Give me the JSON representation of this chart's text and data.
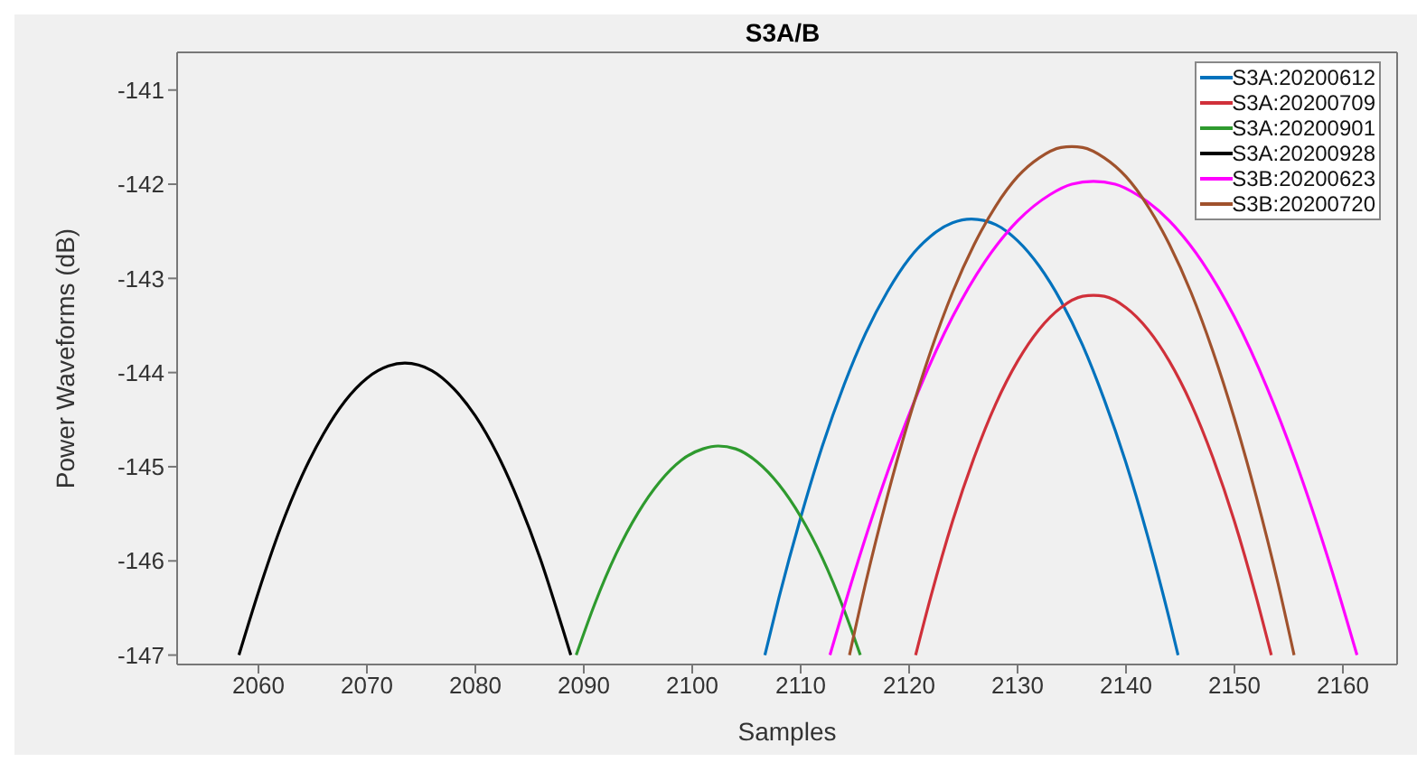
{
  "chart_data": {
    "type": "line",
    "title": "S3A/B",
    "xlabel": "Samples",
    "ylabel": "Power Waveforms (dB)",
    "xlim": [
      2052.5,
      2165
    ],
    "xticks": [
      2060,
      2070,
      2080,
      2090,
      2100,
      2110,
      2120,
      2130,
      2140,
      2150,
      2160
    ],
    "ylim": [
      -147.1,
      -140.6
    ],
    "yticks": [
      -147,
      -146,
      -145,
      -144,
      -143,
      -142,
      -141
    ],
    "grid": false,
    "legend": "top right",
    "marker": "none",
    "line_style": "solid",
    "series": [
      {
        "name": "S3A:20200612",
        "color": "#0072bd",
        "x": [
          2106.7,
          2108,
          2110,
          2112,
          2114,
          2116,
          2118,
          2120,
          2122,
          2124,
          2125.75,
          2128,
          2130,
          2132,
          2134,
          2136,
          2138,
          2140,
          2142,
          2144,
          2144.8
        ],
        "values": [
          -147.0,
          -146.39,
          -145.54,
          -144.78,
          -144.13,
          -143.58,
          -143.14,
          -142.79,
          -142.55,
          -142.41,
          -142.37,
          -142.43,
          -142.6,
          -142.87,
          -143.24,
          -143.71,
          -144.29,
          -144.96,
          -145.74,
          -146.62,
          -147.0
        ]
      },
      {
        "name": "S3A:20200709",
        "color": "#d0303a",
        "x": [
          2120.6,
          2122,
          2124,
          2126,
          2128,
          2130,
          2132,
          2134,
          2136,
          2137,
          2138,
          2140,
          2142,
          2144,
          2146,
          2148,
          2150,
          2152,
          2153.4
        ],
        "values": [
          -147.0,
          -146.38,
          -145.58,
          -144.9,
          -144.33,
          -143.88,
          -143.54,
          -143.31,
          -143.19,
          -143.18,
          -143.19,
          -143.31,
          -143.54,
          -143.88,
          -144.33,
          -144.9,
          -145.58,
          -146.38,
          -147.0
        ]
      },
      {
        "name": "S3A:20200901",
        "color": "#2e9a2e",
        "x": [
          2089.3,
          2091,
          2093,
          2095,
          2097,
          2099,
          2101,
          2102.4,
          2104,
          2106,
          2108,
          2110,
          2112,
          2114,
          2115.5
        ],
        "values": [
          -147.0,
          -146.46,
          -145.92,
          -145.49,
          -145.16,
          -144.93,
          -144.81,
          -144.78,
          -144.81,
          -144.95,
          -145.19,
          -145.53,
          -145.97,
          -146.52,
          -147.0
        ]
      },
      {
        "name": "S3A:20200928",
        "color": "#000000",
        "x": [
          2058.2,
          2060,
          2062,
          2064,
          2066,
          2068,
          2070,
          2072,
          2073.5,
          2076,
          2078,
          2080,
          2082,
          2084,
          2086,
          2088,
          2088.8
        ],
        "values": [
          -147.0,
          -146.33,
          -145.66,
          -145.1,
          -144.65,
          -144.3,
          -144.06,
          -143.93,
          -143.9,
          -143.98,
          -144.17,
          -144.46,
          -144.86,
          -145.37,
          -145.98,
          -146.7,
          -147.0
        ]
      },
      {
        "name": "S3B:20200623",
        "color": "#ff00ff",
        "x": [
          2112.7,
          2115,
          2118,
          2121,
          2124,
          2127,
          2130,
          2133,
          2135,
          2137,
          2139,
          2141,
          2144,
          2147,
          2150,
          2153,
          2156,
          2159,
          2161.3
        ],
        "values": [
          -147.0,
          -146.11,
          -145.06,
          -144.16,
          -143.41,
          -142.82,
          -142.39,
          -142.11,
          -142.0,
          -141.97,
          -142.0,
          -142.11,
          -142.39,
          -142.82,
          -143.41,
          -144.16,
          -145.06,
          -146.11,
          -147.0
        ]
      },
      {
        "name": "S3B:20200720",
        "color": "#a0522d",
        "x": [
          2114.5,
          2116,
          2118,
          2120,
          2122,
          2124,
          2126,
          2128,
          2130,
          2132,
          2134,
          2135,
          2136,
          2138,
          2140,
          2142,
          2144,
          2146,
          2148,
          2150,
          2152,
          2154,
          2155.5
        ],
        "values": [
          -147.0,
          -146.23,
          -145.31,
          -144.49,
          -143.77,
          -143.15,
          -142.64,
          -142.23,
          -141.92,
          -141.72,
          -141.61,
          -141.6,
          -141.61,
          -141.72,
          -141.92,
          -142.23,
          -142.64,
          -143.15,
          -143.77,
          -144.49,
          -145.31,
          -146.23,
          -147.0
        ]
      }
    ]
  }
}
